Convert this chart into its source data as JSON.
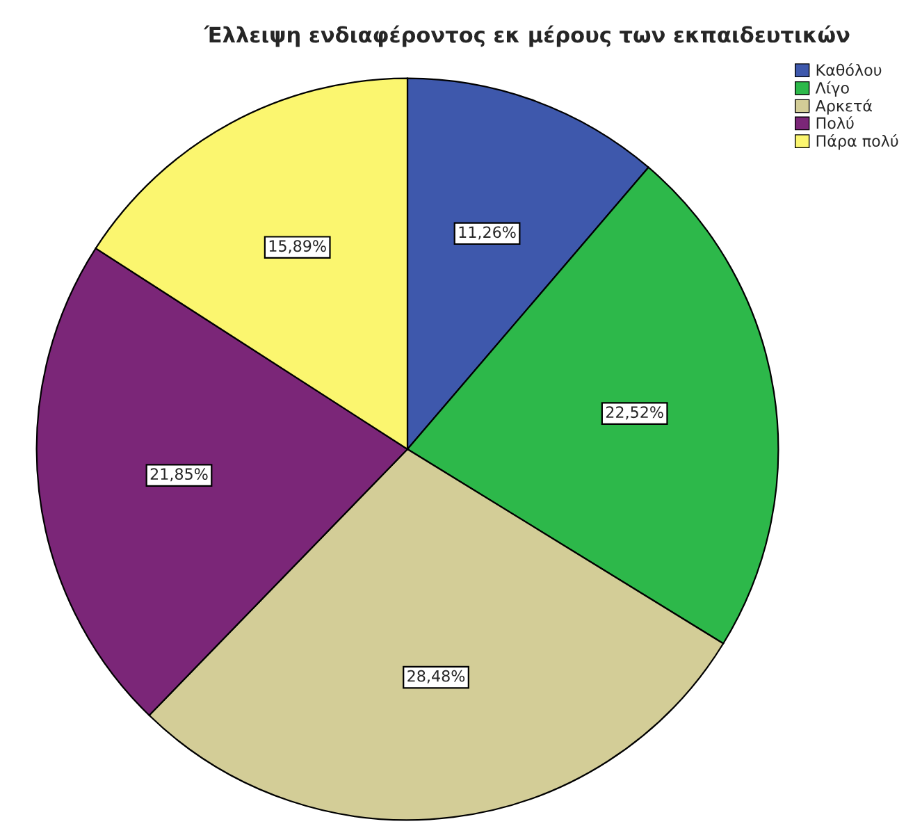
{
  "chart_data": {
    "type": "pie",
    "title": "Έλλειψη ενδιαφέροντος εκ μέρους των εκπαιδευτικών",
    "categories": [
      "Καθόλου",
      "Λίγο",
      "Αρκετά",
      "Πολύ",
      "Πάρα πολύ"
    ],
    "values": [
      11.26,
      22.52,
      28.48,
      21.85,
      15.89
    ],
    "colors": [
      "#3e58ac",
      "#2db84a",
      "#d3cd97",
      "#7b2678",
      "#fbf66f"
    ],
    "value_labels": [
      "11,26%",
      "22,52%",
      "28,48%",
      "21,85%",
      "15,89%"
    ],
    "legend": "top right"
  }
}
